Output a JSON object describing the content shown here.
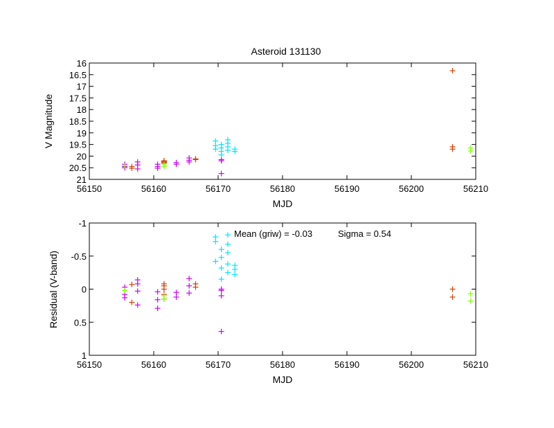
{
  "chart_data": [
    {
      "type": "scatter",
      "title": "Asteroid 131130",
      "xlabel": "MJD",
      "ylabel": "V Magnitude",
      "xlim": [
        56150,
        56210
      ],
      "ylim": [
        21,
        16
      ],
      "y_inverted": true,
      "xticks": [
        "56150",
        "56160",
        "56170",
        "56180",
        "56190",
        "56200",
        "56210"
      ],
      "yticks": [
        "16",
        "16.5",
        "17",
        "17.5",
        "18",
        "18.5",
        "19",
        "19.5",
        "20",
        "20.5",
        "21"
      ],
      "grid": false,
      "series": [
        {
          "color": "#d53e00",
          "points": [
            [
              56156.6,
              20.45
            ],
            [
              56156.6,
              20.52
            ],
            [
              56161.6,
              20.2
            ],
            [
              56161.6,
              20.23
            ],
            [
              56161.6,
              20.26
            ],
            [
              56161.6,
              20.3
            ],
            [
              56166.5,
              20.12
            ],
            [
              56166.5,
              20.15
            ],
            [
              56206.4,
              16.33
            ],
            [
              56206.4,
              19.6
            ],
            [
              56206.4,
              19.7
            ]
          ]
        },
        {
          "color": "#cc00ff",
          "points": [
            [
              56155.5,
              20.35
            ],
            [
              56155.5,
              20.45
            ],
            [
              56155.5,
              20.5
            ],
            [
              56157.5,
              20.25
            ],
            [
              56157.5,
              20.38
            ],
            [
              56157.5,
              20.55
            ],
            [
              56160.6,
              20.35
            ],
            [
              56160.6,
              20.45
            ],
            [
              56160.6,
              20.52
            ],
            [
              56163.5,
              20.28
            ],
            [
              56163.5,
              20.35
            ],
            [
              56165.5,
              20.08
            ],
            [
              56165.5,
              20.18
            ],
            [
              56165.5,
              20.25
            ],
            [
              56170.5,
              20.15
            ],
            [
              56170.5,
              20.2
            ],
            [
              56170.5,
              20.75
            ]
          ]
        },
        {
          "color": "#00e5ff",
          "points": [
            [
              56169.6,
              19.35
            ],
            [
              56169.6,
              19.55
            ],
            [
              56169.6,
              19.7
            ],
            [
              56170.5,
              19.5
            ],
            [
              56170.5,
              19.65
            ],
            [
              56170.5,
              19.8
            ],
            [
              56170.5,
              19.95
            ],
            [
              56171.5,
              19.3
            ],
            [
              56171.5,
              19.45
            ],
            [
              56171.5,
              19.6
            ],
            [
              56171.5,
              19.75
            ],
            [
              56172.6,
              19.7
            ],
            [
              56172.6,
              19.8
            ]
          ]
        },
        {
          "color": "#7fff00",
          "points": [
            [
              56155.5,
              20.42
            ],
            [
              56161.6,
              20.35
            ],
            [
              56161.6,
              20.45
            ],
            [
              56209.2,
              19.65
            ],
            [
              56209.2,
              19.78
            ]
          ]
        }
      ]
    },
    {
      "type": "scatter",
      "title": "",
      "xlabel": "MJD",
      "ylabel": "Residual (V-band)",
      "xlim": [
        56150,
        56210
      ],
      "ylim": [
        1,
        -1
      ],
      "y_inverted": true,
      "xticks": [
        "56150",
        "56160",
        "56170",
        "56180",
        "56190",
        "56200",
        "56210"
      ],
      "yticks": [
        "-1",
        "-0.5",
        "0",
        "0.5",
        "1"
      ],
      "grid": false,
      "annotations": {
        "mean": "Mean (griw) = -0.03",
        "sigma": "Sigma =  0.54"
      },
      "series": [
        {
          "color": "#d53e00",
          "points": [
            [
              56156.6,
              -0.07
            ],
            [
              56156.6,
              0.2
            ],
            [
              56161.6,
              -0.08
            ],
            [
              56161.6,
              -0.05
            ],
            [
              56161.6,
              0.0
            ],
            [
              56161.6,
              0.08
            ],
            [
              56161.6,
              0.15
            ],
            [
              56166.5,
              -0.08
            ],
            [
              56166.5,
              -0.03
            ],
            [
              56206.4,
              0.0
            ],
            [
              56206.4,
              0.12
            ]
          ]
        },
        {
          "color": "#cc00ff",
          "points": [
            [
              56155.5,
              -0.03
            ],
            [
              56155.5,
              0.08
            ],
            [
              56155.5,
              0.13
            ],
            [
              56157.5,
              -0.14
            ],
            [
              56157.5,
              -0.08
            ],
            [
              56157.5,
              0.03
            ],
            [
              56157.5,
              0.24
            ],
            [
              56160.6,
              0.04
            ],
            [
              56160.6,
              0.16
            ],
            [
              56160.6,
              0.29
            ],
            [
              56163.5,
              0.05
            ],
            [
              56163.5,
              0.12
            ],
            [
              56165.5,
              -0.16
            ],
            [
              56165.5,
              -0.05
            ],
            [
              56165.5,
              0.06
            ],
            [
              56170.5,
              0.0
            ],
            [
              56170.5,
              0.02
            ],
            [
              56170.5,
              0.1
            ],
            [
              56170.5,
              0.64
            ]
          ]
        },
        {
          "color": "#00e5ff",
          "points": [
            [
              56169.6,
              -0.79
            ],
            [
              56169.6,
              -0.72
            ],
            [
              56169.6,
              -0.42
            ],
            [
              56170.5,
              -0.6
            ],
            [
              56170.5,
              -0.48
            ],
            [
              56170.5,
              -0.32
            ],
            [
              56170.5,
              -0.15
            ],
            [
              56171.5,
              -0.82
            ],
            [
              56171.5,
              -0.68
            ],
            [
              56171.5,
              -0.55
            ],
            [
              56171.5,
              -0.38
            ],
            [
              56171.5,
              -0.25
            ],
            [
              56172.6,
              -0.36
            ],
            [
              56172.6,
              -0.3
            ],
            [
              56172.6,
              -0.22
            ]
          ]
        },
        {
          "color": "#7fff00",
          "points": [
            [
              56155.5,
              0.02
            ],
            [
              56161.6,
              0.1
            ],
            [
              56161.6,
              0.15
            ],
            [
              56209.2,
              0.07
            ],
            [
              56209.2,
              0.18
            ]
          ]
        }
      ]
    }
  ]
}
